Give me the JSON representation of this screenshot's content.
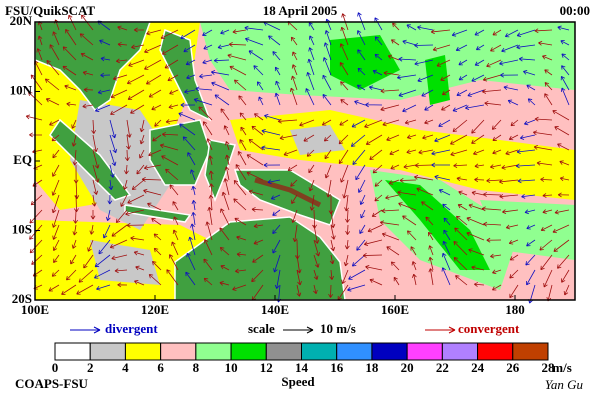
{
  "header": {
    "left": "FSU/QuikSCAT",
    "center": "18 April 2005",
    "right": "00:00"
  },
  "map": {
    "ylim": [
      -20,
      20
    ],
    "xlim": [
      100,
      190
    ],
    "yticks": [
      {
        "value": 20,
        "label": "20N"
      },
      {
        "value": 10,
        "label": "10N"
      },
      {
        "value": 0,
        "label": "EQ"
      },
      {
        "value": -10,
        "label": "10S"
      },
      {
        "value": -20,
        "label": "20S"
      }
    ],
    "xticks": [
      {
        "value": 100,
        "label": "100E"
      },
      {
        "value": 120,
        "label": "120E"
      },
      {
        "value": 140,
        "label": "140E"
      },
      {
        "value": 160,
        "label": "160E"
      },
      180
    ]
  },
  "legend": {
    "divergent": "divergent",
    "scale": "scale",
    "scale_value": "10 m/s",
    "convergent": "convergent"
  },
  "colorbar": {
    "ticks": [
      0,
      2,
      4,
      6,
      8,
      10,
      12,
      14,
      16,
      18,
      20,
      22,
      24,
      26,
      28
    ],
    "colors": [
      "#ffffff",
      "#c8c8c8",
      "#ffff00",
      "#ffc0c0",
      "#90ff90",
      "#00e000",
      "#909090",
      "#00b0b0",
      "#3090ff",
      "#0000c0",
      "#ff40ff",
      "#b080ff",
      "#ff0000",
      "#c04000",
      "#000000"
    ],
    "unit": "m/s",
    "label": "Speed"
  },
  "footer": {
    "left": "COAPS-FSU",
    "right": "Yan Gu"
  }
}
